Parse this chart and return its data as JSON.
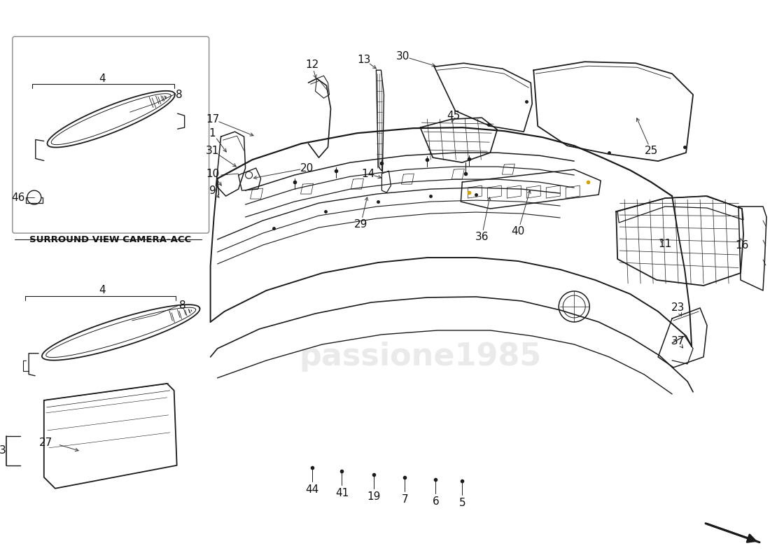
{
  "background_color": "#ffffff",
  "line_color": "#1a1a1a",
  "text_color": "#111111",
  "inset_label": "SURROUND VIEW CAMERA-ACC",
  "watermark": "passione1985",
  "font_size": 11,
  "figsize": [
    11.0,
    8.0
  ],
  "dpi": 100
}
